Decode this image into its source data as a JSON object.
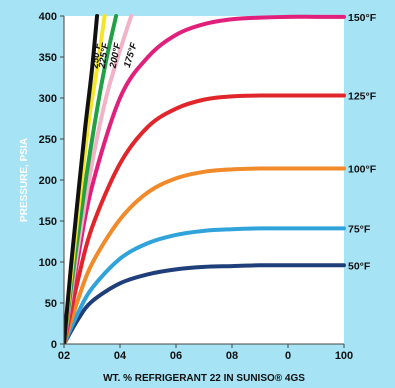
{
  "chart_data": {
    "type": "line",
    "title": "",
    "xlabel": "WT. % REFRIGERANT 22 IN SUNISO® 4GS",
    "ylabel": "PRESSURE, PSIA",
    "ylim": [
      0,
      400
    ],
    "xlim": [
      0,
      100
    ],
    "x_tick_labels": [
      "02",
      "04",
      "06",
      "08",
      "0",
      "100"
    ],
    "y_tick_labels": [
      "0",
      "50",
      "100",
      "150",
      "200",
      "250",
      "300",
      "350",
      "400"
    ],
    "grid": false,
    "series": [
      {
        "name": "50°F",
        "color": "#1f3f7a",
        "points": [
          [
            0,
            0
          ],
          [
            5,
            30
          ],
          [
            10,
            52
          ],
          [
            20,
            74
          ],
          [
            30,
            85
          ],
          [
            40,
            91
          ],
          [
            50,
            94
          ],
          [
            60,
            95
          ],
          [
            70,
            96
          ],
          [
            80,
            96
          ],
          [
            90,
            96
          ],
          [
            100,
            96
          ]
        ]
      },
      {
        "name": "75°F",
        "color": "#2fa3da",
        "points": [
          [
            0,
            0
          ],
          [
            5,
            38
          ],
          [
            10,
            68
          ],
          [
            20,
            104
          ],
          [
            30,
            123
          ],
          [
            40,
            133
          ],
          [
            50,
            138
          ],
          [
            60,
            140
          ],
          [
            70,
            141
          ],
          [
            80,
            141
          ],
          [
            90,
            141
          ],
          [
            100,
            141
          ]
        ]
      },
      {
        "name": "100°F",
        "color": "#f08a2a",
        "points": [
          [
            0,
            0
          ],
          [
            5,
            54
          ],
          [
            10,
            98
          ],
          [
            20,
            152
          ],
          [
            30,
            185
          ],
          [
            40,
            202
          ],
          [
            50,
            210
          ],
          [
            60,
            213
          ],
          [
            70,
            214
          ],
          [
            80,
            214
          ],
          [
            90,
            214
          ],
          [
            100,
            214
          ]
        ]
      },
      {
        "name": "125°F",
        "color": "#e0262a",
        "points": [
          [
            0,
            0
          ],
          [
            5,
            78
          ],
          [
            10,
            142
          ],
          [
            20,
            220
          ],
          [
            30,
            265
          ],
          [
            40,
            287
          ],
          [
            50,
            298
          ],
          [
            60,
            302
          ],
          [
            70,
            303
          ],
          [
            80,
            303
          ],
          [
            90,
            303
          ],
          [
            100,
            303
          ]
        ]
      },
      {
        "name": "150°F",
        "color": "#e0207a",
        "points": [
          [
            0,
            0
          ],
          [
            5,
            105
          ],
          [
            10,
            192
          ],
          [
            20,
            300
          ],
          [
            30,
            350
          ],
          [
            40,
            377
          ],
          [
            50,
            390
          ],
          [
            60,
            396
          ],
          [
            70,
            398
          ],
          [
            80,
            399
          ],
          [
            90,
            399
          ],
          [
            100,
            399
          ]
        ]
      },
      {
        "name": "175°F",
        "color": "#f2b3c8",
        "points": [
          [
            0,
            0
          ],
          [
            5,
            118
          ],
          [
            10,
            220
          ],
          [
            15,
            300
          ],
          [
            20,
            358
          ],
          [
            24,
            400
          ]
        ]
      },
      {
        "name": "200°F",
        "color": "#22a046",
        "points": [
          [
            0,
            0
          ],
          [
            4,
            108
          ],
          [
            8,
            205
          ],
          [
            12,
            290
          ],
          [
            15,
            345
          ],
          [
            18.6,
            400
          ]
        ]
      },
      {
        "name": "225°F",
        "color": "#f4e526",
        "points": [
          [
            0,
            0
          ],
          [
            3,
            98
          ],
          [
            6,
            190
          ],
          [
            9,
            275
          ],
          [
            12,
            340
          ],
          [
            14.5,
            400
          ]
        ]
      },
      {
        "name": "250°F",
        "color": "#111111",
        "points": [
          [
            0,
            0
          ],
          [
            2.5,
            95
          ],
          [
            5,
            180
          ],
          [
            7.5,
            262
          ],
          [
            10,
            335
          ],
          [
            11.8,
            400
          ]
        ]
      }
    ]
  }
}
